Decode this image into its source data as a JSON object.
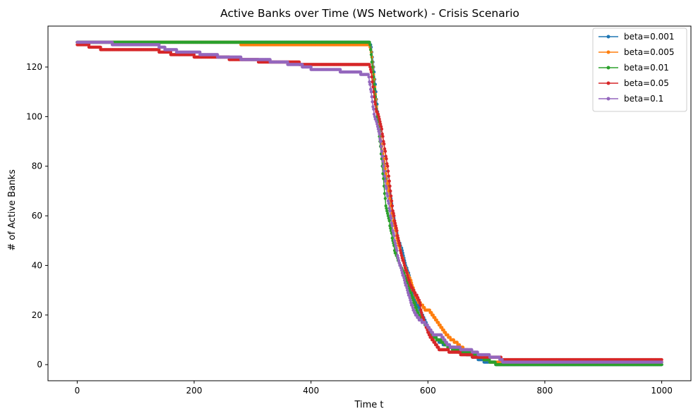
{
  "chart_data": {
    "type": "line",
    "title": "Active Banks over Time (WS Network) - Crisis Scenario",
    "xlabel": "Time t",
    "ylabel": "# of Active Banks",
    "xlim": [
      -50,
      1050
    ],
    "ylim": [
      -6.5,
      136.5
    ],
    "xticks": [
      0,
      200,
      400,
      600,
      800,
      1000
    ],
    "yticks": [
      0,
      20,
      40,
      60,
      80,
      100,
      120
    ],
    "grid": false,
    "legend_position": "top-right",
    "series": [
      {
        "name": "beta=0.001",
        "color": "#1f77b4",
        "points": [
          [
            0,
            130
          ],
          [
            500,
            130
          ],
          [
            503,
            128
          ],
          [
            505,
            124
          ],
          [
            508,
            118
          ],
          [
            511,
            110
          ],
          [
            514,
            102
          ],
          [
            517,
            96
          ],
          [
            520,
            90
          ],
          [
            524,
            82
          ],
          [
            528,
            76
          ],
          [
            532,
            72
          ],
          [
            536,
            68
          ],
          [
            540,
            62
          ],
          [
            545,
            55
          ],
          [
            550,
            50
          ],
          [
            556,
            46
          ],
          [
            562,
            40
          ],
          [
            568,
            36
          ],
          [
            574,
            30
          ],
          [
            580,
            25
          ],
          [
            586,
            22
          ],
          [
            592,
            19
          ],
          [
            598,
            16
          ],
          [
            604,
            13
          ],
          [
            612,
            11
          ],
          [
            620,
            9
          ],
          [
            630,
            8
          ],
          [
            640,
            7
          ],
          [
            650,
            6
          ],
          [
            660,
            5
          ],
          [
            670,
            4
          ],
          [
            680,
            3
          ],
          [
            690,
            2
          ],
          [
            700,
            1
          ],
          [
            710,
            1
          ],
          [
            720,
            0
          ],
          [
            725,
            0
          ],
          [
            1000,
            0
          ]
        ]
      },
      {
        "name": "beta=0.005",
        "color": "#ff7f0e",
        "points": [
          [
            0,
            130
          ],
          [
            280,
            130
          ],
          [
            280,
            129
          ],
          [
            500,
            129
          ],
          [
            503,
            126
          ],
          [
            506,
            120
          ],
          [
            509,
            112
          ],
          [
            512,
            104
          ],
          [
            515,
            98
          ],
          [
            518,
            92
          ],
          [
            522,
            86
          ],
          [
            526,
            80
          ],
          [
            530,
            74
          ],
          [
            534,
            68
          ],
          [
            538,
            62
          ],
          [
            543,
            56
          ],
          [
            548,
            50
          ],
          [
            554,
            45
          ],
          [
            560,
            40
          ],
          [
            566,
            36
          ],
          [
            572,
            33
          ],
          [
            578,
            28
          ],
          [
            584,
            25
          ],
          [
            590,
            24
          ],
          [
            596,
            22
          ],
          [
            602,
            22
          ],
          [
            608,
            20
          ],
          [
            614,
            18
          ],
          [
            620,
            16
          ],
          [
            626,
            14
          ],
          [
            632,
            12
          ],
          [
            640,
            10
          ],
          [
            648,
            9
          ],
          [
            656,
            7
          ],
          [
            664,
            6
          ],
          [
            672,
            5
          ],
          [
            680,
            4
          ],
          [
            690,
            3
          ],
          [
            700,
            2
          ],
          [
            710,
            1
          ],
          [
            720,
            1
          ],
          [
            730,
            1
          ],
          [
            1000,
            1
          ]
        ]
      },
      {
        "name": "beta=0.01",
        "color": "#2ca02c",
        "points": [
          [
            0,
            130
          ],
          [
            500,
            130
          ],
          [
            502,
            127
          ],
          [
            504,
            122
          ],
          [
            507,
            116
          ],
          [
            510,
            108
          ],
          [
            513,
            100
          ],
          [
            516,
            94
          ],
          [
            519,
            88
          ],
          [
            522,
            80
          ],
          [
            525,
            72
          ],
          [
            528,
            64
          ],
          [
            532,
            60
          ],
          [
            536,
            55
          ],
          [
            540,
            50
          ],
          [
            544,
            45
          ],
          [
            548,
            43
          ],
          [
            552,
            40
          ],
          [
            556,
            38
          ],
          [
            560,
            36
          ],
          [
            566,
            32
          ],
          [
            572,
            28
          ],
          [
            578,
            24
          ],
          [
            584,
            20
          ],
          [
            590,
            18
          ],
          [
            596,
            16
          ],
          [
            602,
            13
          ],
          [
            610,
            11
          ],
          [
            618,
            10
          ],
          [
            626,
            9
          ],
          [
            636,
            7
          ],
          [
            646,
            6
          ],
          [
            656,
            5
          ],
          [
            666,
            5
          ],
          [
            676,
            4
          ],
          [
            690,
            3
          ],
          [
            700,
            2
          ],
          [
            710,
            1
          ],
          [
            720,
            0
          ],
          [
            1000,
            0
          ]
        ]
      },
      {
        "name": "beta=0.05",
        "color": "#d62728",
        "points": [
          [
            0,
            129
          ],
          [
            20,
            129
          ],
          [
            20,
            128
          ],
          [
            40,
            128
          ],
          [
            40,
            127
          ],
          [
            140,
            127
          ],
          [
            140,
            126
          ],
          [
            160,
            126
          ],
          [
            160,
            125
          ],
          [
            200,
            125
          ],
          [
            200,
            124
          ],
          [
            260,
            124
          ],
          [
            260,
            123
          ],
          [
            310,
            123
          ],
          [
            310,
            122
          ],
          [
            380,
            122
          ],
          [
            380,
            121
          ],
          [
            500,
            121
          ],
          [
            503,
            118
          ],
          [
            506,
            112
          ],
          [
            509,
            106
          ],
          [
            512,
            102
          ],
          [
            516,
            100
          ],
          [
            520,
            96
          ],
          [
            524,
            90
          ],
          [
            528,
            84
          ],
          [
            532,
            78
          ],
          [
            536,
            70
          ],
          [
            540,
            62
          ],
          [
            545,
            56
          ],
          [
            550,
            50
          ],
          [
            555,
            44
          ],
          [
            560,
            40
          ],
          [
            565,
            36
          ],
          [
            570,
            32
          ],
          [
            575,
            30
          ],
          [
            580,
            28
          ],
          [
            585,
            26
          ],
          [
            590,
            20
          ],
          [
            596,
            16
          ],
          [
            602,
            12
          ],
          [
            608,
            10
          ],
          [
            614,
            8
          ],
          [
            620,
            6
          ],
          [
            630,
            6
          ],
          [
            640,
            5
          ],
          [
            650,
            5
          ],
          [
            660,
            4
          ],
          [
            670,
            4
          ],
          [
            680,
            3
          ],
          [
            690,
            3
          ],
          [
            700,
            3
          ],
          [
            710,
            3
          ],
          [
            720,
            3
          ],
          [
            730,
            2
          ],
          [
            1000,
            2
          ]
        ]
      },
      {
        "name": "beta=0.1",
        "color": "#9467bd",
        "points": [
          [
            0,
            130
          ],
          [
            60,
            130
          ],
          [
            60,
            129
          ],
          [
            140,
            129
          ],
          [
            140,
            128
          ],
          [
            150,
            128
          ],
          [
            150,
            127
          ],
          [
            170,
            127
          ],
          [
            170,
            126
          ],
          [
            210,
            126
          ],
          [
            210,
            125
          ],
          [
            240,
            125
          ],
          [
            240,
            124
          ],
          [
            280,
            124
          ],
          [
            280,
            123
          ],
          [
            330,
            123
          ],
          [
            330,
            122
          ],
          [
            360,
            122
          ],
          [
            360,
            121
          ],
          [
            385,
            121
          ],
          [
            385,
            120
          ],
          [
            400,
            120
          ],
          [
            400,
            119
          ],
          [
            450,
            119
          ],
          [
            450,
            118
          ],
          [
            485,
            118
          ],
          [
            485,
            117
          ],
          [
            498,
            117
          ],
          [
            500,
            114
          ],
          [
            503,
            110
          ],
          [
            506,
            104
          ],
          [
            509,
            100
          ],
          [
            512,
            98
          ],
          [
            516,
            94
          ],
          [
            520,
            88
          ],
          [
            524,
            80
          ],
          [
            528,
            72
          ],
          [
            532,
            66
          ],
          [
            536,
            60
          ],
          [
            540,
            54
          ],
          [
            545,
            48
          ],
          [
            550,
            42
          ],
          [
            555,
            38
          ],
          [
            560,
            34
          ],
          [
            565,
            30
          ],
          [
            570,
            26
          ],
          [
            575,
            22
          ],
          [
            580,
            20
          ],
          [
            586,
            18
          ],
          [
            592,
            17
          ],
          [
            598,
            16
          ],
          [
            604,
            14
          ],
          [
            610,
            12
          ],
          [
            616,
            12
          ],
          [
            622,
            12
          ],
          [
            628,
            10
          ],
          [
            634,
            8
          ],
          [
            640,
            7
          ],
          [
            650,
            7
          ],
          [
            660,
            6
          ],
          [
            670,
            6
          ],
          [
            680,
            5
          ],
          [
            690,
            4
          ],
          [
            700,
            4
          ],
          [
            710,
            3
          ],
          [
            720,
            3
          ],
          [
            730,
            1
          ],
          [
            1000,
            1
          ]
        ]
      }
    ]
  }
}
